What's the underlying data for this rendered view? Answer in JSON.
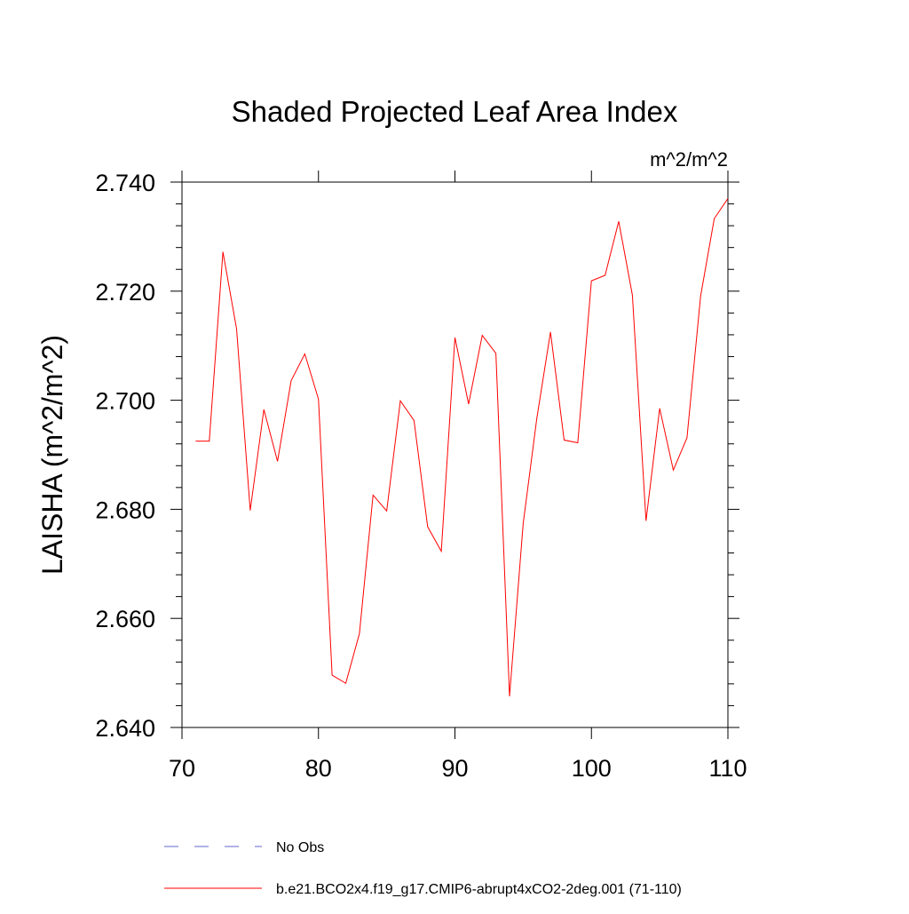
{
  "chart_data": {
    "type": "line",
    "title": "Shaded Projected Leaf Area Index",
    "units": "m^2/m^2",
    "ylabel": "LAISHA  (m^2/m^2)",
    "xlabel": "",
    "xlim": [
      70,
      110
    ],
    "ylim": [
      2.64,
      2.74
    ],
    "x_ticks": [
      70,
      80,
      90,
      100,
      110
    ],
    "x_tick_labels": [
      "70",
      "80",
      "90",
      "100",
      "110"
    ],
    "y_ticks": [
      2.64,
      2.66,
      2.68,
      2.7,
      2.72,
      2.74
    ],
    "y_tick_labels": [
      "2.640",
      "2.660",
      "2.680",
      "2.700",
      "2.720",
      "2.740"
    ],
    "grid": false,
    "legend_position": "bottom",
    "series": [
      {
        "name": "b.e21.BCO2x4.f19_g17.CMIP6-abrupt4xCO2-2deg.001 (71-110)",
        "color": "#ff0000",
        "style": "solid",
        "x": [
          71,
          72,
          73,
          74,
          75,
          76,
          77,
          78,
          79,
          80,
          81,
          82,
          83,
          84,
          85,
          86,
          87,
          88,
          89,
          90,
          91,
          92,
          93,
          94,
          95,
          96,
          97,
          98,
          99,
          100,
          101,
          102,
          103,
          104,
          105,
          106,
          107,
          108,
          109,
          110
        ],
        "values": [
          2.6925,
          2.6925,
          2.7272,
          2.7131,
          2.6798,
          2.6983,
          2.6888,
          2.7036,
          2.7085,
          2.7002,
          2.6496,
          2.6481,
          2.6572,
          2.6826,
          2.6797,
          2.6999,
          2.6963,
          2.6768,
          2.6723,
          2.7115,
          2.6993,
          2.7119,
          2.7086,
          2.6457,
          2.6774,
          2.6967,
          2.7125,
          2.6927,
          2.6922,
          2.7219,
          2.7229,
          2.7328,
          2.7193,
          2.6779,
          2.6985,
          2.6872,
          2.6931,
          2.7191,
          2.7333,
          2.737
        ]
      }
    ],
    "legend": [
      {
        "label": "No Obs",
        "color": "#6666cc",
        "style": "dashed"
      },
      {
        "label": "b.e21.BCO2x4.f19_g17.CMIP6-abrupt4xCO2-2deg.001 (71-110)",
        "color": "#ff0000",
        "style": "solid"
      }
    ]
  }
}
